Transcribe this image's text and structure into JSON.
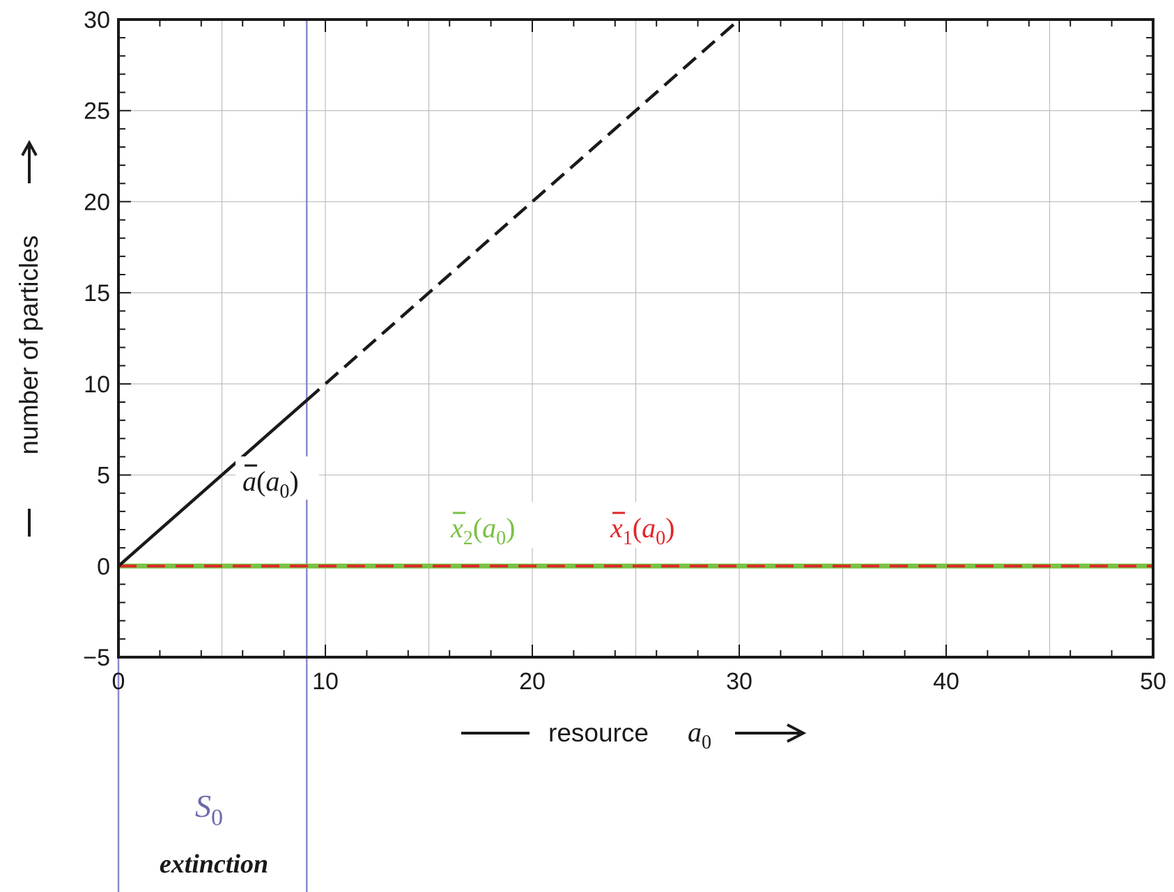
{
  "chart_data": {
    "type": "line",
    "xlabel": "resource",
    "xlabel_symbol": "a",
    "xlabel_symbol_sub": "0",
    "ylabel": "number of particles",
    "xlim": [
      0,
      50
    ],
    "ylim": [
      -5,
      30
    ],
    "x_ticks": [
      0,
      10,
      20,
      30,
      40,
      50
    ],
    "x_tick_labels": [
      "0",
      "10",
      "20",
      "30",
      "40",
      "50"
    ],
    "y_ticks": [
      -5,
      0,
      5,
      10,
      15,
      20,
      25,
      30
    ],
    "y_tick_labels": [
      "−5",
      "0",
      "5",
      "10",
      "15",
      "20",
      "25",
      "30"
    ],
    "x_minor_step": 2,
    "y_minor_step": 1,
    "grid": true,
    "threshold_x": 9.1,
    "series": [
      {
        "name": "ā(a0)",
        "label_symbol": "a",
        "label_sub": "0",
        "color": "#1a1a1a",
        "segments": [
          {
            "style": "solid",
            "x": [
              0,
              9.1
            ],
            "y": [
              0,
              9.1
            ]
          },
          {
            "style": "dashed",
            "x": [
              9.1,
              30
            ],
            "y": [
              9.1,
              30
            ]
          }
        ]
      },
      {
        "name": "x̄2(a0)",
        "label_symbol": "x",
        "label_index": "2",
        "label_sub": "0",
        "color": "#7ac143",
        "x": [
          0,
          50
        ],
        "y": [
          0,
          0
        ]
      },
      {
        "name": "x̄1(a0)",
        "label_symbol": "x",
        "label_index": "1",
        "label_sub": "0",
        "color": "#e0262a",
        "x": [
          0,
          50
        ],
        "y": [
          0,
          0
        ]
      }
    ],
    "regions": [
      {
        "name": "S",
        "name_sub": "0",
        "description": "extinction",
        "x_from": 0,
        "x_to": 9.1,
        "color": "#6a6aaa"
      }
    ],
    "colors": {
      "boundary_line": "#8a8ad0",
      "grid": "#bdbdbd",
      "axis": "#1a1a1a"
    }
  }
}
